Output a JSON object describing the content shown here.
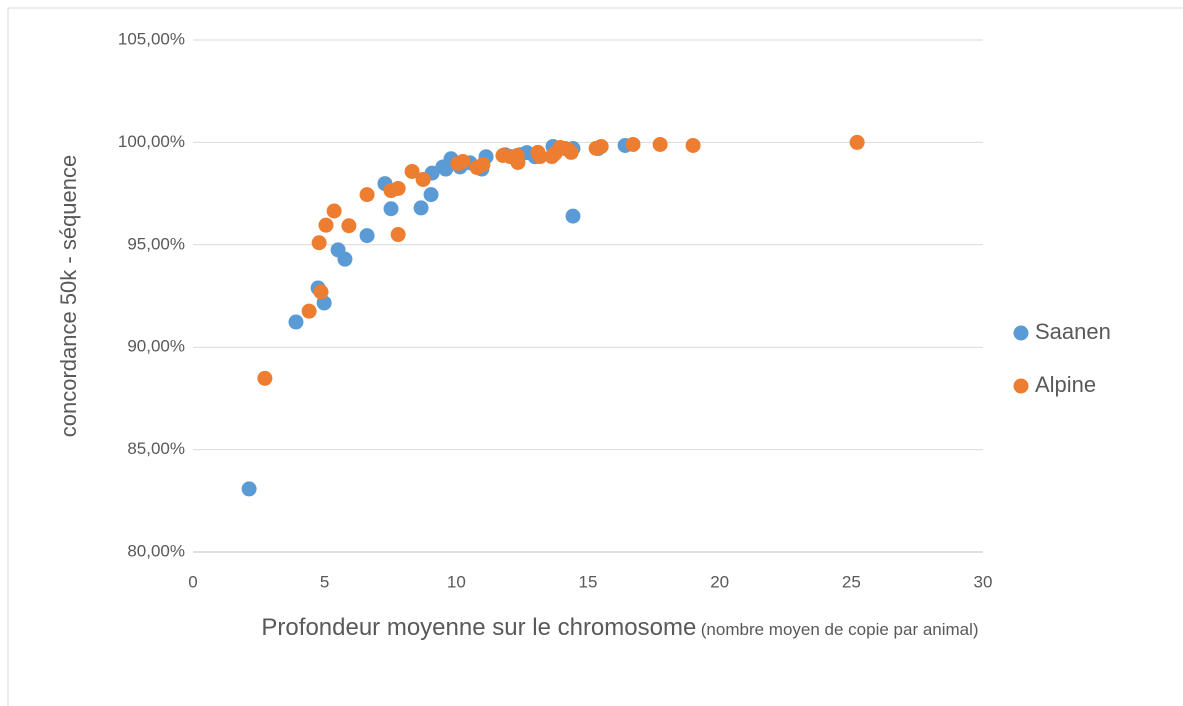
{
  "chart_data": {
    "type": "scatter",
    "y_label": "concordance 50k - séquence",
    "x_label": "Profondeur moyenne sur le chromosome",
    "x_label_note": "(nombre moyen de copie par animal)",
    "xlim": [
      0,
      30
    ],
    "xticks": [
      0,
      5,
      10,
      15,
      20,
      25,
      30
    ],
    "ylim": [
      80,
      105
    ],
    "yticks": [
      {
        "value": 80,
        "label": "80,00%"
      },
      {
        "value": 85,
        "label": "85,00%"
      },
      {
        "value": 90,
        "label": "90,00%"
      },
      {
        "value": 95,
        "label": "95,00%"
      },
      {
        "value": 100,
        "label": "100,00%"
      },
      {
        "value": 105,
        "label": "105,00%"
      }
    ],
    "grid": true,
    "legend": "right",
    "series": [
      {
        "name": "Saanen",
        "color": "#5b9bd5",
        "x": [
          2.13,
          3.91,
          4.75,
          4.98,
          5.51,
          5.77,
          6.61,
          7.29,
          7.52,
          8.66,
          9.04,
          9.08,
          9.49,
          9.6,
          9.8,
          10.14,
          10.52,
          10.97,
          11.13,
          11.85,
          12.42,
          12.68,
          12.99,
          13.67,
          14.13,
          14.43,
          14.43,
          15.38,
          16.41
        ],
        "values": [
          83.08,
          91.23,
          92.89,
          92.16,
          94.75,
          94.3,
          95.45,
          97.99,
          96.76,
          96.8,
          97.45,
          98.5,
          98.8,
          98.7,
          99.2,
          98.8,
          99.0,
          98.7,
          99.3,
          99.4,
          99.4,
          99.5,
          99.3,
          99.8,
          99.7,
          99.7,
          96.4,
          99.7,
          99.85
        ]
      },
      {
        "name": "Alpine",
        "color": "#ed7d31",
        "x": [
          2.73,
          4.41,
          4.79,
          4.86,
          5.05,
          5.36,
          5.92,
          6.61,
          7.52,
          7.79,
          7.79,
          8.32,
          8.74,
          10.06,
          10.25,
          10.79,
          11.01,
          11.77,
          12.04,
          12.31,
          12.34,
          13.1,
          13.18,
          13.63,
          13.75,
          13.94,
          14.24,
          14.36,
          15.31,
          15.5,
          16.71,
          17.74,
          18.99,
          25.22
        ],
        "values": [
          88.48,
          91.76,
          95.1,
          92.7,
          95.96,
          96.65,
          95.93,
          97.45,
          97.65,
          97.75,
          95.5,
          98.58,
          98.19,
          98.97,
          99.07,
          98.77,
          98.92,
          99.36,
          99.31,
          99.36,
          99.02,
          99.51,
          99.31,
          99.31,
          99.46,
          99.75,
          99.66,
          99.51,
          99.71,
          99.8,
          99.9,
          99.9,
          99.85,
          100.0
        ]
      }
    ]
  }
}
